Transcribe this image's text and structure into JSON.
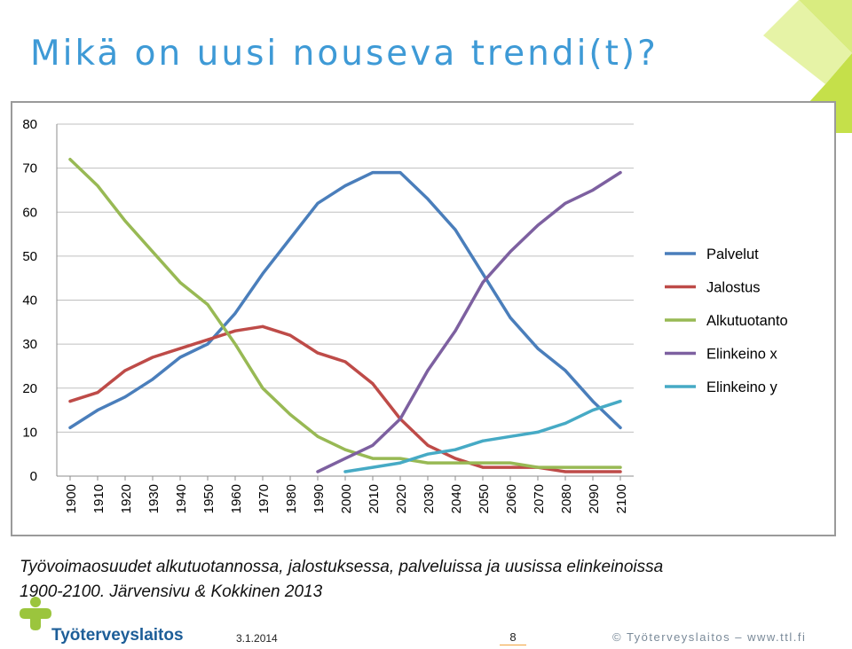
{
  "title": "Mikä on uusi nouseva trendi(t)?",
  "caption": {
    "line1": "Työvoimaosuudet alkutuotannossa, jalostuksessa, palveluissa ja uusissa elinkeinoissa",
    "line2": "1900-2100.  Järvensivu & Kokkinen 2013"
  },
  "footer": {
    "logo_text": "Työterveyslaitos",
    "date": "3.1.2014",
    "page_number": "8",
    "copyright": "© Työterveyslaitos – www.ttl.fi"
  },
  "colors": {
    "title": "#3e9ad6",
    "accent_green": "#c5e04a",
    "logo_green": "#9bc53d",
    "logo_blue": "#1d5e98"
  },
  "icons": {
    "logo": "ttl-logo-mark",
    "corner": "green-triangles-decoration"
  },
  "chart_data": {
    "type": "line",
    "x": [
      1900,
      1910,
      1920,
      1930,
      1940,
      1950,
      1960,
      1970,
      1980,
      1990,
      2000,
      2010,
      2020,
      2030,
      2040,
      2050,
      2060,
      2070,
      2080,
      2090,
      2100
    ],
    "ylim": [
      0,
      80
    ],
    "yticks": [
      0,
      10,
      20,
      30,
      40,
      50,
      60,
      70,
      80
    ],
    "grid": true,
    "legend_position": "right",
    "series": [
      {
        "name": "Palvelut",
        "color": "#4a7ebb",
        "values": [
          11,
          15,
          18,
          22,
          27,
          30,
          37,
          46,
          54,
          62,
          66,
          69,
          69,
          63,
          56,
          46,
          36,
          29,
          24,
          17,
          11
        ]
      },
      {
        "name": "Jalostus",
        "color": "#be4b48",
        "values": [
          17,
          19,
          24,
          27,
          29,
          31,
          33,
          34,
          32,
          28,
          26,
          21,
          13,
          7,
          4,
          2,
          2,
          2,
          1,
          1,
          1
        ]
      },
      {
        "name": "Alkutuotanto",
        "color": "#98b954",
        "values": [
          72,
          66,
          58,
          51,
          44,
          39,
          30,
          20,
          14,
          9,
          6,
          4,
          4,
          3,
          3,
          3,
          3,
          2,
          2,
          2,
          2
        ]
      },
      {
        "name": "Elinkeino x",
        "color": "#7d60a0",
        "values": [
          null,
          null,
          null,
          null,
          null,
          null,
          null,
          null,
          null,
          1,
          4,
          7,
          13,
          24,
          33,
          44,
          51,
          57,
          62,
          65,
          69
        ]
      },
      {
        "name": "Elinkeino y",
        "color": "#46aac5",
        "values": [
          null,
          null,
          null,
          null,
          null,
          null,
          null,
          null,
          null,
          null,
          1,
          2,
          3,
          5,
          6,
          8,
          9,
          10,
          12,
          15,
          17
        ]
      }
    ]
  }
}
